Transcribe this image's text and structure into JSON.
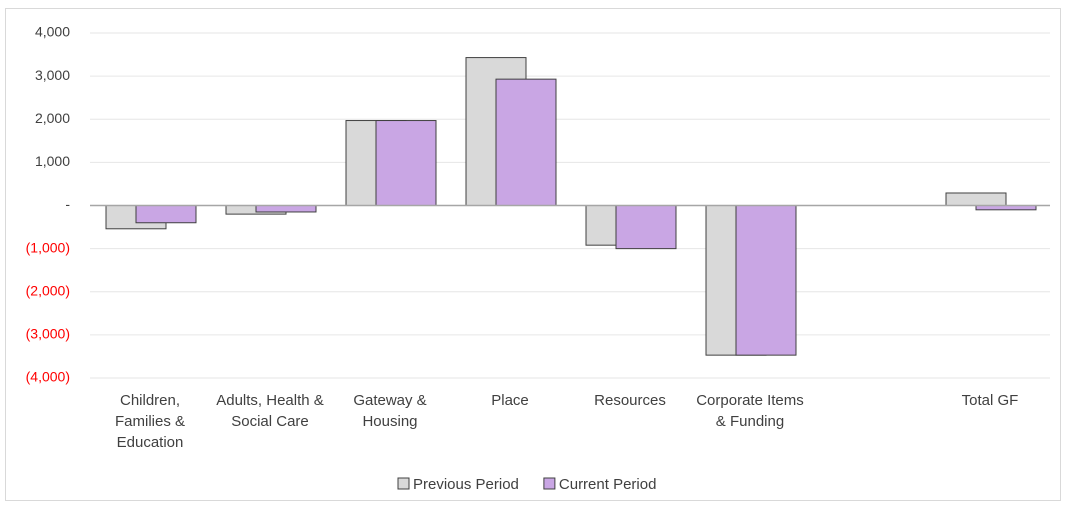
{
  "chart_data": {
    "type": "bar",
    "categories": [
      "Children, Families & Education",
      "Adults, Health & Social Care",
      "Gateway & Housing",
      "Place",
      "Resources",
      "Corporate Items & Funding",
      null,
      "Total GF"
    ],
    "series": [
      {
        "name": "Previous Period",
        "color": "#d9d9d9",
        "values": [
          -540,
          -200,
          1970,
          3430,
          -920,
          -3470,
          null,
          290
        ]
      },
      {
        "name": "Current Period",
        "color": "#c9a6e4",
        "values": [
          -400,
          -150,
          1970,
          2930,
          -1000,
          -3470,
          null,
          -100
        ]
      }
    ],
    "ylim": [
      -4000,
      4000
    ],
    "yticks": [
      {
        "value": -4000,
        "label": "(4,000)"
      },
      {
        "value": -3000,
        "label": "(3,000)"
      },
      {
        "value": -2000,
        "label": "(2,000)"
      },
      {
        "value": -1000,
        "label": "(1,000)"
      },
      {
        "value": 0,
        "label": "-"
      },
      {
        "value": 1000,
        "label": "1,000"
      },
      {
        "value": 2000,
        "label": "2,000"
      },
      {
        "value": 3000,
        "label": "3,000"
      },
      {
        "value": 4000,
        "label": "4,000"
      }
    ],
    "negative_tick_color": "#ff0000",
    "grid": true,
    "legend": "bottom"
  }
}
